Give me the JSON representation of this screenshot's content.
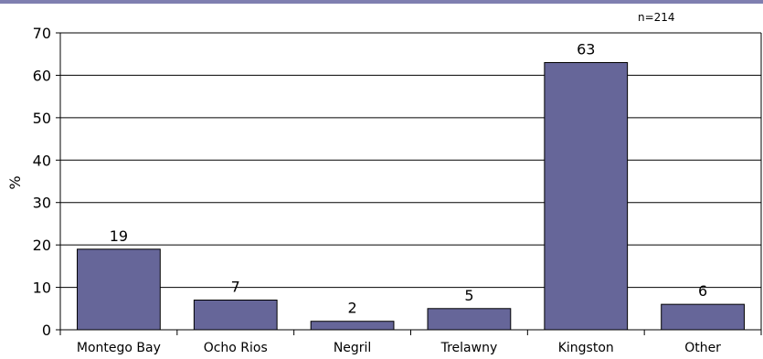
{
  "chart_data": {
    "type": "bar",
    "categories": [
      "Montego Bay",
      "Ocho Rios",
      "Negril",
      "Trelawny",
      "Kingston",
      "Other"
    ],
    "values": [
      19,
      7,
      2,
      5,
      63,
      6
    ],
    "data_labels": [
      "19",
      "7",
      "2",
      "5",
      "63",
      "6"
    ],
    "ylabel": "%",
    "ylim": [
      0,
      70
    ],
    "yticks": [
      0,
      10,
      20,
      30,
      40,
      50,
      60,
      70
    ],
    "grid": true,
    "annotation": "n=214",
    "colors": {
      "bar": "#666699",
      "bar_edge": "#000000",
      "grid": "#000000",
      "top_rule": "#7f7fb0"
    }
  }
}
